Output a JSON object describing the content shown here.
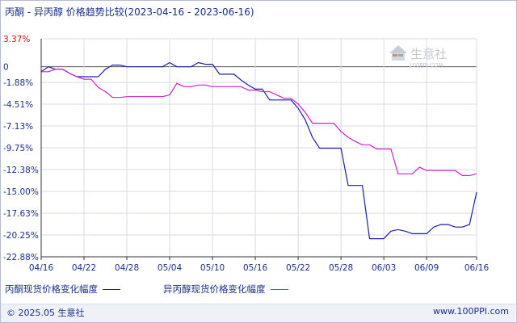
{
  "title": "丙酮 - 异丙醇 价格趋势比较(2023-04-16 - 2023-06-16)",
  "watermark": {
    "brand": "生意社",
    "url": "100PPI.COM"
  },
  "footer": {
    "copyright": "© 2025.05 生意社",
    "site": "www.100PPI.com"
  },
  "colors": {
    "series1": "#1e1ea8",
    "series2": "#cc22cc",
    "axis": "#333333",
    "grid": "#d8dbe4",
    "text": "#1a2f8a"
  },
  "chart_data": {
    "type": "line",
    "xlabel": "",
    "ylabel": "",
    "x_ticks": [
      "04/16",
      "04/22",
      "04/28",
      "05/04",
      "05/10",
      "05/16",
      "05/22",
      "05/28",
      "06/03",
      "06/09",
      "06/16"
    ],
    "y_ticks": [
      "3.37%",
      "0",
      "-1.88%",
      "-4.51%",
      "-7.13%",
      "-9.75%",
      "-12.38%",
      "-15.00%",
      "-17.63%",
      "-20.25%",
      "-22.88%"
    ],
    "ylim": [
      -22.88,
      3.37
    ],
    "x_range": [
      "04/16",
      "06/16"
    ],
    "series": [
      {
        "name": "丙酮现货价格变化幅度",
        "points": [
          [
            "04/16",
            -0.6
          ],
          [
            "04/17",
            0.0
          ],
          [
            "04/18",
            -0.3
          ],
          [
            "04/19",
            -0.3
          ],
          [
            "04/20",
            -0.8
          ],
          [
            "04/21",
            -1.2
          ],
          [
            "04/22",
            -1.2
          ],
          [
            "04/23",
            -1.2
          ],
          [
            "04/24",
            -1.2
          ],
          [
            "04/25",
            -0.3
          ],
          [
            "04/26",
            0.2
          ],
          [
            "04/27",
            0.2
          ],
          [
            "04/28",
            0.0
          ],
          [
            "04/29",
            0.0
          ],
          [
            "04/30",
            0.0
          ],
          [
            "05/01",
            0.0
          ],
          [
            "05/02",
            0.0
          ],
          [
            "05/03",
            0.0
          ],
          [
            "05/04",
            0.5
          ],
          [
            "05/05",
            0.0
          ],
          [
            "05/06",
            0.0
          ],
          [
            "05/07",
            0.0
          ],
          [
            "05/08",
            0.5
          ],
          [
            "05/09",
            0.3
          ],
          [
            "05/10",
            0.3
          ],
          [
            "05/11",
            -0.9
          ],
          [
            "05/12",
            -0.9
          ],
          [
            "05/13",
            -0.9
          ],
          [
            "05/14",
            -1.6
          ],
          [
            "05/15",
            -2.2
          ],
          [
            "05/16",
            -2.7
          ],
          [
            "05/17",
            -2.7
          ],
          [
            "05/18",
            -4.0
          ],
          [
            "05/19",
            -4.0
          ],
          [
            "05/20",
            -4.0
          ],
          [
            "05/21",
            -4.0
          ],
          [
            "05/22",
            -5.0
          ],
          [
            "05/23",
            -6.4
          ],
          [
            "05/24",
            -8.5
          ],
          [
            "05/25",
            -9.8
          ],
          [
            "05/26",
            -9.8
          ],
          [
            "05/27",
            -9.8
          ],
          [
            "05/28",
            -9.8
          ],
          [
            "05/29",
            -14.3
          ],
          [
            "05/30",
            -14.3
          ],
          [
            "05/31",
            -14.3
          ],
          [
            "06/01",
            -20.7
          ],
          [
            "06/02",
            -20.7
          ],
          [
            "06/03",
            -20.7
          ],
          [
            "06/04",
            -19.8
          ],
          [
            "06/05",
            -19.6
          ],
          [
            "06/06",
            -19.8
          ],
          [
            "06/07",
            -20.1
          ],
          [
            "06/08",
            -20.1
          ],
          [
            "06/09",
            -20.1
          ],
          [
            "06/10",
            -19.3
          ],
          [
            "06/11",
            -19.0
          ],
          [
            "06/12",
            -19.0
          ],
          [
            "06/13",
            -19.3
          ],
          [
            "06/14",
            -19.3
          ],
          [
            "06/15",
            -19.0
          ],
          [
            "06/16",
            -15.1
          ]
        ]
      },
      {
        "name": "异丙醇现货价格变化幅度",
        "points": [
          [
            "04/16",
            -0.6
          ],
          [
            "04/17",
            -0.6
          ],
          [
            "04/18",
            -0.3
          ],
          [
            "04/19",
            -0.3
          ],
          [
            "04/20",
            -0.8
          ],
          [
            "04/21",
            -1.2
          ],
          [
            "04/22",
            -1.5
          ],
          [
            "04/23",
            -1.5
          ],
          [
            "04/24",
            -2.5
          ],
          [
            "04/25",
            -3.0
          ],
          [
            "04/26",
            -3.7
          ],
          [
            "04/27",
            -3.7
          ],
          [
            "04/28",
            -3.6
          ],
          [
            "04/29",
            -3.6
          ],
          [
            "04/30",
            -3.6
          ],
          [
            "05/01",
            -3.6
          ],
          [
            "05/02",
            -3.6
          ],
          [
            "05/03",
            -3.6
          ],
          [
            "05/04",
            -3.4
          ],
          [
            "05/05",
            -2.0
          ],
          [
            "05/06",
            -2.4
          ],
          [
            "05/07",
            -2.4
          ],
          [
            "05/08",
            -2.2
          ],
          [
            "05/09",
            -2.2
          ],
          [
            "05/10",
            -2.4
          ],
          [
            "05/11",
            -2.4
          ],
          [
            "05/12",
            -2.4
          ],
          [
            "05/13",
            -2.4
          ],
          [
            "05/14",
            -2.4
          ],
          [
            "05/15",
            -2.8
          ],
          [
            "05/16",
            -2.8
          ],
          [
            "05/17",
            -3.0
          ],
          [
            "05/18",
            -3.0
          ],
          [
            "05/19",
            -3.4
          ],
          [
            "05/20",
            -3.8
          ],
          [
            "05/21",
            -3.8
          ],
          [
            "05/22",
            -4.5
          ],
          [
            "05/23",
            -5.5
          ],
          [
            "05/24",
            -6.8
          ],
          [
            "05/25",
            -6.8
          ],
          [
            "05/26",
            -6.8
          ],
          [
            "05/27",
            -6.8
          ],
          [
            "05/28",
            -7.8
          ],
          [
            "05/29",
            -8.5
          ],
          [
            "05/30",
            -9.0
          ],
          [
            "05/31",
            -9.4
          ],
          [
            "06/01",
            -9.4
          ],
          [
            "06/02",
            -9.9
          ],
          [
            "06/03",
            -9.9
          ],
          [
            "06/04",
            -9.9
          ],
          [
            "06/05",
            -12.9
          ],
          [
            "06/06",
            -12.9
          ],
          [
            "06/07",
            -12.9
          ],
          [
            "06/08",
            -12.1
          ],
          [
            "06/09",
            -12.5
          ],
          [
            "06/10",
            -12.5
          ],
          [
            "06/11",
            -12.5
          ],
          [
            "06/12",
            -12.5
          ],
          [
            "06/13",
            -12.5
          ],
          [
            "06/14",
            -13.1
          ],
          [
            "06/15",
            -13.1
          ],
          [
            "06/16",
            -12.9
          ]
        ]
      }
    ],
    "legend_position": "bottom-left",
    "grid": true
  }
}
